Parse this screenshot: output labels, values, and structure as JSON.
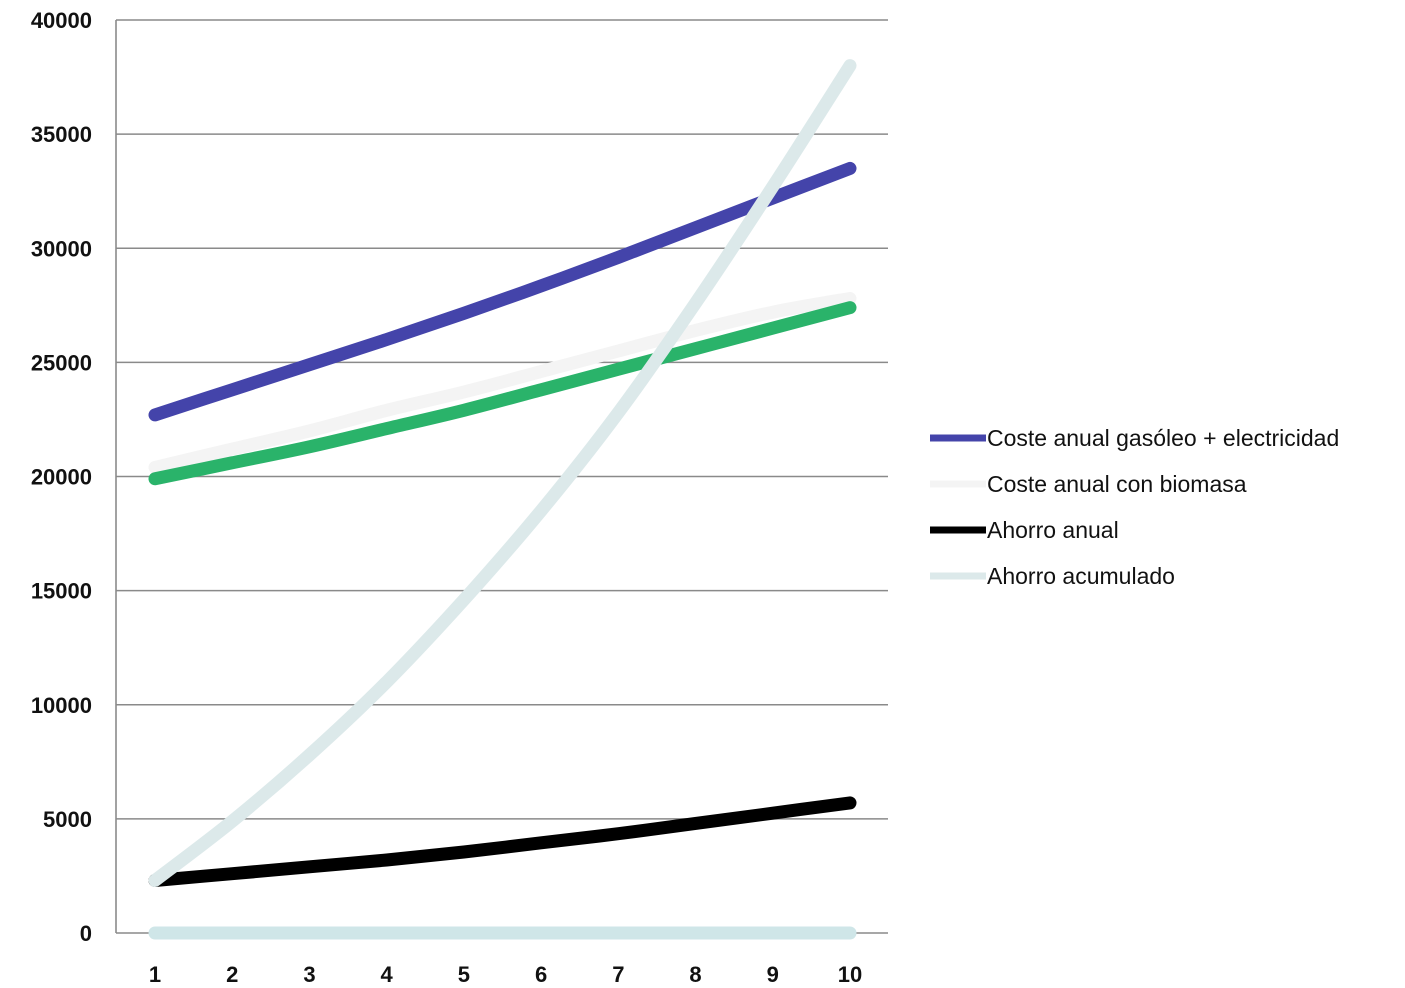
{
  "chart_data": {
    "type": "line",
    "title": "",
    "xlabel": "",
    "ylabel": "",
    "x": [
      1,
      2,
      3,
      4,
      5,
      6,
      7,
      8,
      9,
      10
    ],
    "xticks": [
      "1",
      "2",
      "3",
      "4",
      "5",
      "6",
      "7",
      "8",
      "9",
      "10"
    ],
    "yticks": [
      "0",
      "5000",
      "10000",
      "15000",
      "20000",
      "25000",
      "30000",
      "35000",
      "40000"
    ],
    "ytick_values": [
      0,
      5000,
      10000,
      15000,
      20000,
      25000,
      30000,
      35000,
      40000
    ],
    "ylim": [
      0,
      40000
    ],
    "grid": true,
    "legend_position": "right",
    "series": [
      {
        "name": "Coste anual gasóleo + electricidad",
        "color": "#4444aa",
        "values": [
          22700,
          23800,
          24900,
          26000,
          27150,
          28350,
          29600,
          30900,
          32200,
          33500
        ]
      },
      {
        "name": "Coste anual con biomasa",
        "color": "#f4f4f4",
        "values": [
          20400,
          21200,
          22000,
          22900,
          23700,
          24600,
          25500,
          26400,
          27200,
          27800
        ]
      },
      {
        "name": "Ahorro anual",
        "color": "#000000",
        "values": [
          2300,
          2600,
          2900,
          3200,
          3550,
          3950,
          4350,
          4800,
          5250,
          5700
        ]
      },
      {
        "name": "Ahorro acumulado",
        "color": "#dce9ea",
        "values": [
          2300,
          4900,
          7800,
          11000,
          14600,
          18500,
          22800,
          27600,
          32700,
          38000
        ]
      }
    ],
    "unlabeled_series": [
      {
        "color": "#2ab36a",
        "values": [
          19900,
          20600,
          21300,
          22100,
          22900,
          23800,
          24700,
          25600,
          26500,
          27400
        ]
      },
      {
        "color": "#cfe6e8",
        "values": [
          0,
          0,
          0,
          0,
          0,
          0,
          0,
          0,
          0,
          0
        ]
      }
    ]
  }
}
